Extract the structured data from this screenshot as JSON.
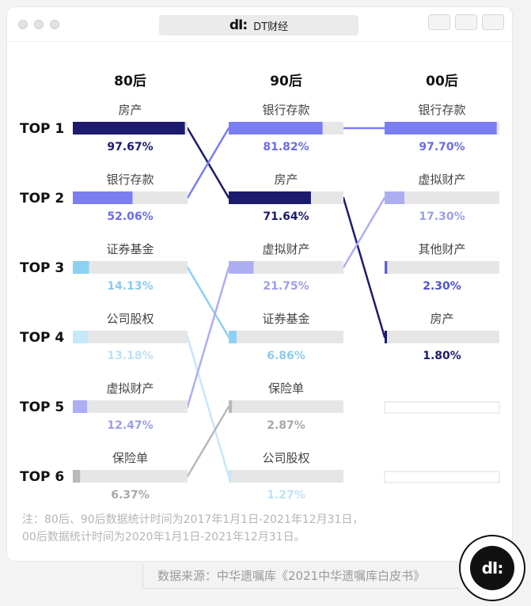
{
  "app": {
    "title": "DT财经",
    "logo_text": "dI:"
  },
  "chart_data": {
    "type": "bar",
    "rank_labels": [
      "TOP 1",
      "TOP 2",
      "TOP 3",
      "TOP 4",
      "TOP 5",
      "TOP 6"
    ],
    "xlim": [
      0,
      100
    ],
    "groups": [
      {
        "name": "80后",
        "items": [
          {
            "label": "房产",
            "value": 97.67,
            "text": "97.67%"
          },
          {
            "label": "银行存款",
            "value": 52.06,
            "text": "52.06%"
          },
          {
            "label": "证券基金",
            "value": 14.13,
            "text": "14.13%"
          },
          {
            "label": "公司股权",
            "value": 13.18,
            "text": "13.18%"
          },
          {
            "label": "虚拟财产",
            "value": 12.47,
            "text": "12.47%"
          },
          {
            "label": "保险单",
            "value": 6.37,
            "text": "6.37%"
          }
        ]
      },
      {
        "name": "90后",
        "items": [
          {
            "label": "银行存款",
            "value": 81.82,
            "text": "81.82%"
          },
          {
            "label": "房产",
            "value": 71.64,
            "text": "71.64%"
          },
          {
            "label": "虚拟财产",
            "value": 21.75,
            "text": "21.75%"
          },
          {
            "label": "证券基金",
            "value": 6.86,
            "text": "6.86%"
          },
          {
            "label": "保险单",
            "value": 2.87,
            "text": "2.87%"
          },
          {
            "label": "公司股权",
            "value": 1.27,
            "text": "1.27%"
          }
        ]
      },
      {
        "name": "00后",
        "items": [
          {
            "label": "银行存款",
            "value": 97.7,
            "text": "97.70%"
          },
          {
            "label": "虚拟财产",
            "value": 17.3,
            "text": "17.30%"
          },
          {
            "label": "其他财产",
            "value": 2.3,
            "text": "2.30%"
          },
          {
            "label": "房产",
            "value": 1.8,
            "text": "1.80%"
          }
        ]
      }
    ],
    "category_colors": {
      "房产": "#1c1b6e",
      "银行存款": "#7b7ef0",
      "虚拟财产": "#adaef2",
      "证券基金": "#8dd0f4",
      "公司股权": "#c6e7f9",
      "保险单": "#b9b9b9",
      "其他财产": "#5b5fd6"
    },
    "track_color": "#e6e6e6"
  },
  "note": {
    "line1": "注：80后、90后数据统计时间为2017年1月1日-2021年12月31日，",
    "line2": "00后数据统计时间为2020年1月1日-2021年12月31日。"
  },
  "source": "数据来源：中华遗嘱库《2021中华遗嘱库白皮书》",
  "badge_text": "dI:"
}
